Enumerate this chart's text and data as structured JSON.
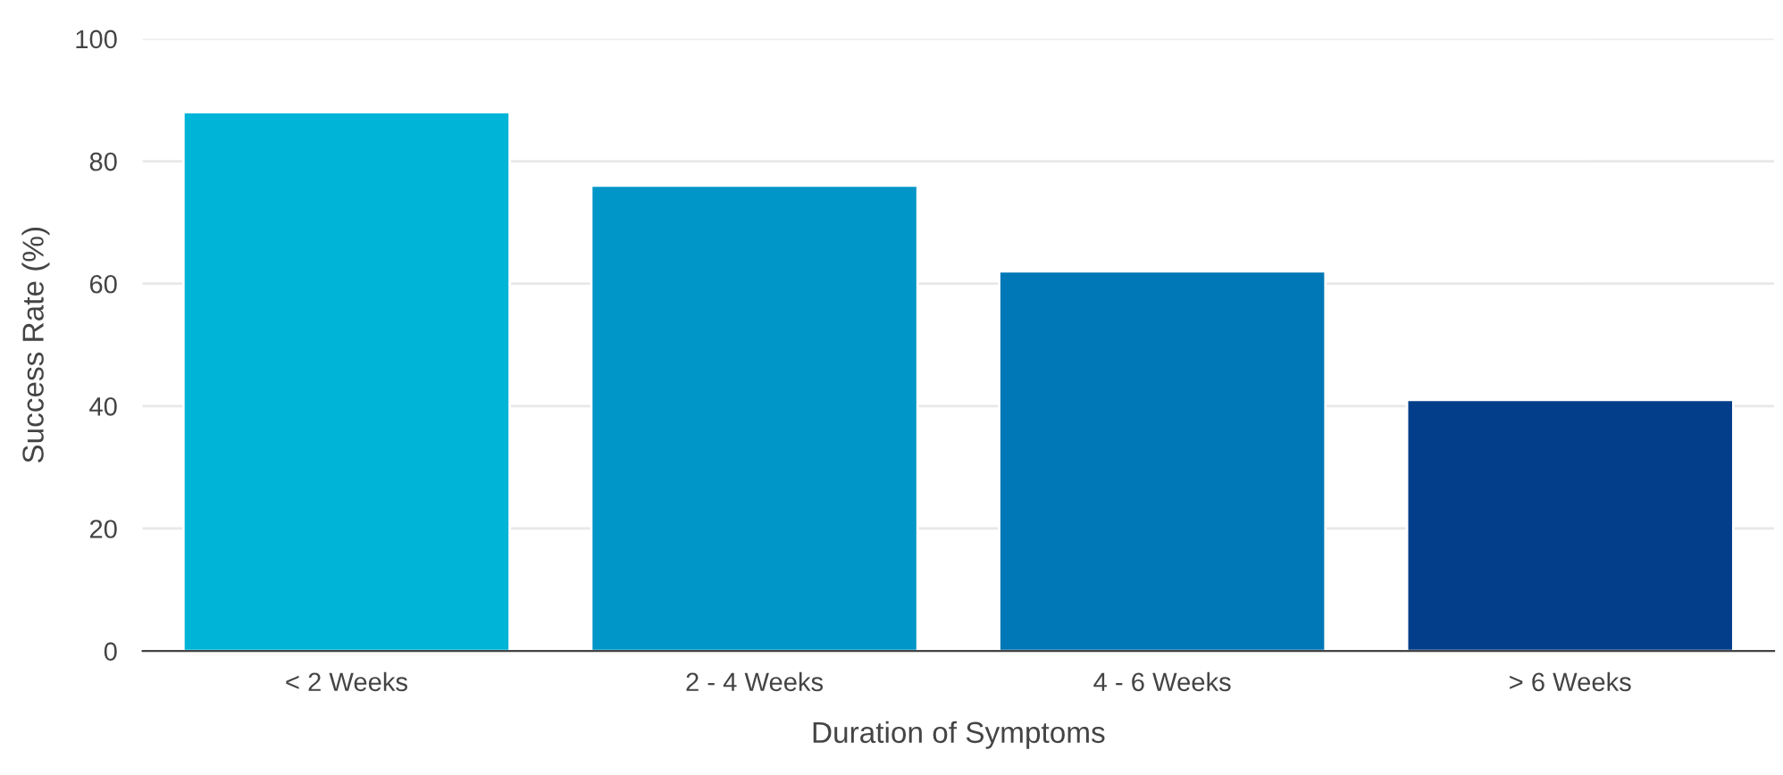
{
  "chart_data": {
    "type": "bar",
    "xlabel": "Duration of Symptoms",
    "ylabel": "Success Rate (%)",
    "categories": [
      "< 2 Weeks",
      "2 - 4 Weeks",
      "4 - 6 Weeks",
      "> 6 Weeks"
    ],
    "values": [
      88,
      76,
      62,
      41
    ],
    "colors": [
      "#00b4d8",
      "#0096c7",
      "#0077b6",
      "#023e8a"
    ],
    "ylim": [
      0,
      100
    ],
    "yticks": [
      0,
      20,
      40,
      60,
      80,
      100
    ],
    "grid": "y"
  }
}
